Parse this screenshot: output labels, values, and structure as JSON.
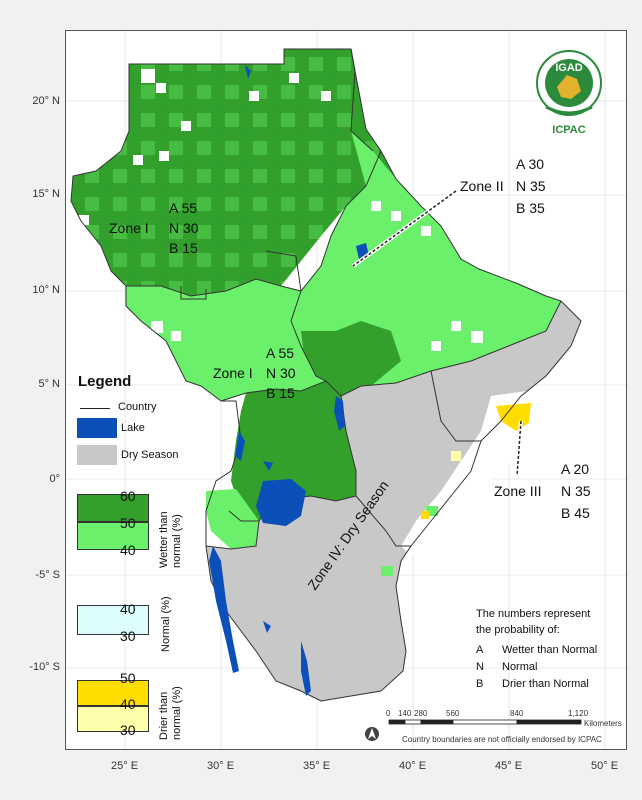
{
  "map": {
    "lat_ticks": [
      "20° N",
      "15° N",
      "10° N",
      "5° N",
      "0°",
      "-5° S",
      "-10° S"
    ],
    "lon_ticks": [
      "25° E",
      "30° E",
      "35° E",
      "40° E",
      "45° E",
      "50° E"
    ],
    "colors": {
      "wetter_high": "#33a02c",
      "wetter_low": "#6af06a",
      "normal": "#ddfdfd",
      "drier_high": "#ffdd00",
      "drier_low": "#ffffaa",
      "dry_season": "#c8c8c8",
      "lake": "#0b4fb8"
    },
    "zones": [
      {
        "name": "Zone I",
        "a": "A 55",
        "n": "N 30",
        "b": "B 15"
      },
      {
        "name": "Zone I",
        "a": "A 55",
        "n": "N 30",
        "b": "B 15"
      },
      {
        "name": "Zone II",
        "a": "A 30",
        "n": "N 35",
        "b": "B 35"
      },
      {
        "name": "Zone III",
        "a": "A 20",
        "n": "N 35",
        "b": "B 45"
      },
      {
        "name": "Zone IV: Dry Season"
      }
    ]
  },
  "logo": {
    "org": "IGAD",
    "center": "ICPAC"
  },
  "legend": {
    "title": "Legend",
    "country": "Country",
    "lake": "Lake",
    "dry_season": "Dry Season",
    "wetter_values": [
      "60",
      "50",
      "40"
    ],
    "wetter_label_1": "Wetter than",
    "wetter_label_2": "normal (%)",
    "normal_values": [
      "40",
      "30"
    ],
    "normal_label": "Normal (%)",
    "drier_values": [
      "50",
      "40",
      "30"
    ],
    "drier_label_1": "Drier than",
    "drier_label_2": "normal (%)"
  },
  "note": {
    "line1": "The numbers represent",
    "line2": "the probability of:",
    "items": [
      {
        "key": "A",
        "text": "Wetter than Normal"
      },
      {
        "key": "N",
        "text": "Normal"
      },
      {
        "key": "B",
        "text": "Drier than Normal"
      }
    ]
  },
  "scalebar": {
    "ticks": [
      "0",
      "140",
      "280",
      "560",
      "840",
      "1,120"
    ],
    "unit": "Kilometers",
    "disclaimer": "Country boundaries are not officially endorsed by ICPAC"
  }
}
